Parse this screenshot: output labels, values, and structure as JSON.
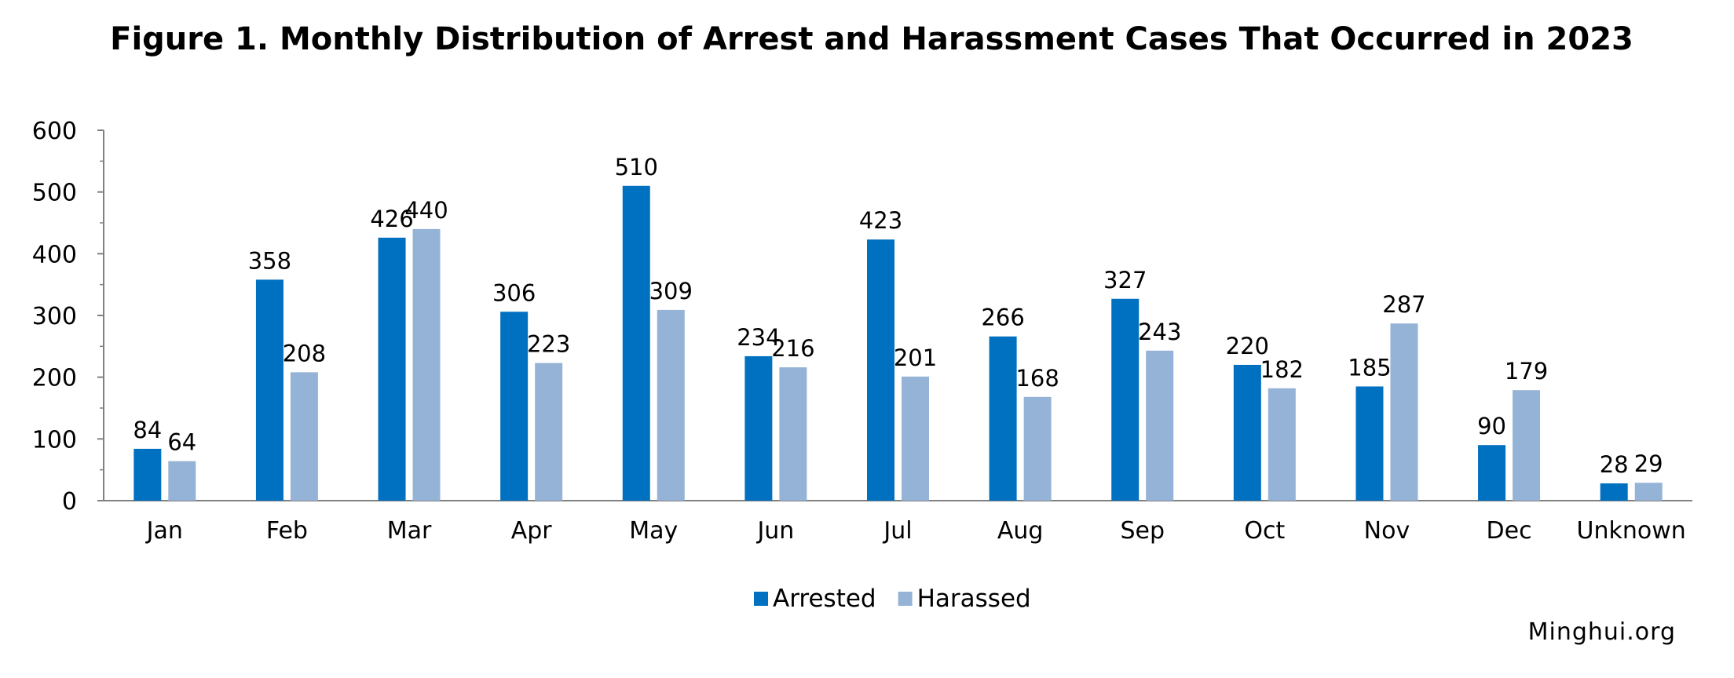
{
  "chart_data": {
    "type": "bar",
    "title": "Figure 1. Monthly Distribution of Arrest and Harassment Cases That Occurred in 2023",
    "categories": [
      "Jan",
      "Feb",
      "Mar",
      "Apr",
      "May",
      "Jun",
      "Jul",
      "Aug",
      "Sep",
      "Oct",
      "Nov",
      "Dec",
      "Unknown"
    ],
    "series": [
      {
        "name": "Arrested",
        "color": "#0070c0",
        "values": [
          84,
          358,
          426,
          306,
          510,
          234,
          423,
          266,
          327,
          220,
          185,
          90,
          28
        ]
      },
      {
        "name": "Harassed",
        "color": "#95b3d7",
        "values": [
          64,
          208,
          440,
          223,
          309,
          216,
          201,
          168,
          243,
          182,
          287,
          179,
          29
        ]
      }
    ],
    "yticks": [
      0,
      100,
      200,
      300,
      400,
      500,
      600
    ],
    "ylim": [
      0,
      600
    ],
    "grid": false,
    "legend_position": "bottom-center",
    "data_labels": true
  },
  "source_credit": "Minghui.org"
}
